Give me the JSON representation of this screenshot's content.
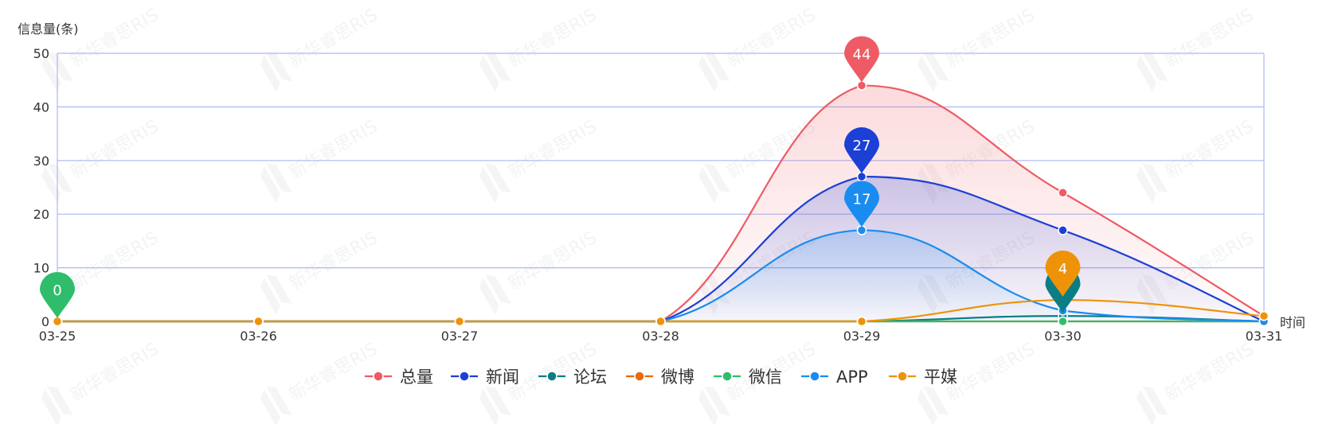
{
  "chart_data": {
    "type": "area",
    "ylabel": "信息量(条)",
    "xlabel": "时间",
    "categories": [
      "03-25",
      "03-26",
      "03-27",
      "03-28",
      "03-29",
      "03-30",
      "03-31"
    ],
    "ylim": [
      0,
      50
    ],
    "yticks": [
      0,
      10,
      20,
      30,
      40,
      50
    ],
    "grid": true,
    "legend_position": "bottom",
    "series": [
      {
        "name": "总量",
        "color": "#ee5b64",
        "values": [
          0,
          0,
          0,
          0,
          44,
          24,
          1
        ],
        "area": true
      },
      {
        "name": "新闻",
        "color": "#1c3fd6",
        "values": [
          0,
          0,
          0,
          0,
          27,
          17,
          0
        ],
        "area": true
      },
      {
        "name": "论坛",
        "color": "#0b7d85",
        "values": [
          0,
          0,
          0,
          0,
          0,
          1,
          0
        ],
        "area": false
      },
      {
        "name": "微博",
        "color": "#e86a0c",
        "values": [
          0,
          0,
          0,
          0,
          0,
          0,
          0
        ],
        "area": false
      },
      {
        "name": "微信",
        "color": "#2fbd6c",
        "values": [
          0,
          0,
          0,
          0,
          0,
          0,
          0
        ],
        "area": false
      },
      {
        "name": "APP",
        "color": "#1a8cf0",
        "values": [
          0,
          0,
          0,
          0,
          17,
          2,
          0
        ],
        "area": true
      },
      {
        "name": "平媒",
        "color": "#ee9308",
        "values": [
          0,
          0,
          0,
          0,
          0,
          4,
          1
        ],
        "area": false
      }
    ],
    "markers": [
      {
        "series": "微信",
        "label": "0",
        "x": "03-25",
        "y": 0
      },
      {
        "series": "总量",
        "label": "44",
        "x": "03-29",
        "y": 44
      },
      {
        "series": "新闻",
        "label": "27",
        "x": "03-29",
        "y": 27
      },
      {
        "series": "APP",
        "label": "17",
        "x": "03-29",
        "y": 17
      },
      {
        "series": "论坛",
        "label": "",
        "x": "03-30",
        "y": 1
      },
      {
        "series": "平媒",
        "label": "4",
        "x": "03-30",
        "y": 4
      }
    ],
    "watermark": "新华睿思RIS"
  }
}
